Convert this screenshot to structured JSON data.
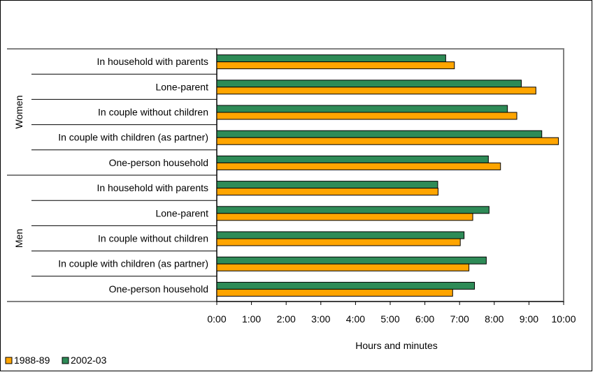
{
  "chart_data": {
    "type": "bar",
    "orientation": "horizontal",
    "xlabel": "Hours and minutes",
    "xlim": [
      0,
      10
    ],
    "x_ticks": [
      "0:00",
      "1:00",
      "2:00",
      "3:00",
      "4:00",
      "5:00",
      "6:00",
      "7:00",
      "8:00",
      "9:00",
      "10:00"
    ],
    "groups": [
      {
        "label": "Women",
        "categories": [
          "In household with parents",
          "Lone-parent",
          "In couple without children",
          "In couple with children (as partner)",
          "One-person household"
        ]
      },
      {
        "label": "Men",
        "categories": [
          "In household with parents",
          "Lone-parent",
          "In couple without children",
          "In couple with children (as partner)",
          "One-person household"
        ]
      }
    ],
    "series": [
      {
        "name": "2002-03",
        "color": "#2e8b57",
        "values": [
          6.6,
          8.78,
          8.38,
          9.37,
          7.83,
          6.37,
          7.85,
          7.13,
          7.77,
          7.43
        ]
      },
      {
        "name": "1988-89",
        "color": "#ffa500",
        "values": [
          6.85,
          9.2,
          8.65,
          9.85,
          8.18,
          6.38,
          7.38,
          7.02,
          7.27,
          6.8
        ]
      }
    ],
    "legend": {
      "position": "bottom-left",
      "entries": [
        "1988-89",
        "2002-03"
      ]
    },
    "grid": false
  }
}
